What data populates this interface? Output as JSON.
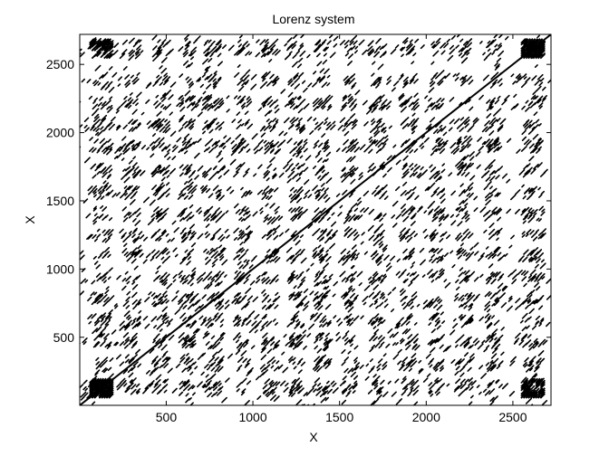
{
  "chart_data": {
    "type": "heatmap",
    "subtype": "recurrence-plot",
    "title": "Lorenz system",
    "xlabel": "X",
    "ylabel": "X",
    "xlim": [
      1,
      2720
    ],
    "ylim": [
      1,
      2720
    ],
    "xticks": [
      500,
      1000,
      1500,
      2000,
      2500
    ],
    "yticks": [
      500,
      1000,
      1500,
      2000,
      2500
    ],
    "xtick_labels": [
      "500",
      "1000",
      "1500",
      "2000",
      "2500"
    ],
    "ytick_labels": [
      "500",
      "1000",
      "1500",
      "2000",
      "2500"
    ],
    "grid": false,
    "colors": {
      "recurrence": "#000000",
      "background": "#ffffff"
    },
    "line_of_identity": [
      [
        1,
        1
      ],
      [
        2720,
        2720
      ]
    ],
    "recurrence_bands": [
      {
        "center": 130,
        "halfwidth": 55
      },
      {
        "center": 300,
        "halfwidth": 45
      },
      {
        "center": 470,
        "halfwidth": 45
      },
      {
        "center": 620,
        "halfwidth": 40
      },
      {
        "center": 770,
        "halfwidth": 55
      },
      {
        "center": 940,
        "halfwidth": 40
      },
      {
        "center": 1100,
        "halfwidth": 45
      },
      {
        "center": 1250,
        "halfwidth": 40
      },
      {
        "center": 1400,
        "halfwidth": 45
      },
      {
        "center": 1560,
        "halfwidth": 40
      },
      {
        "center": 1720,
        "halfwidth": 45
      },
      {
        "center": 1900,
        "halfwidth": 45
      },
      {
        "center": 2060,
        "halfwidth": 40
      },
      {
        "center": 2220,
        "halfwidth": 45
      },
      {
        "center": 2390,
        "halfwidth": 40
      },
      {
        "center": 2620,
        "halfwidth": 60
      }
    ]
  }
}
